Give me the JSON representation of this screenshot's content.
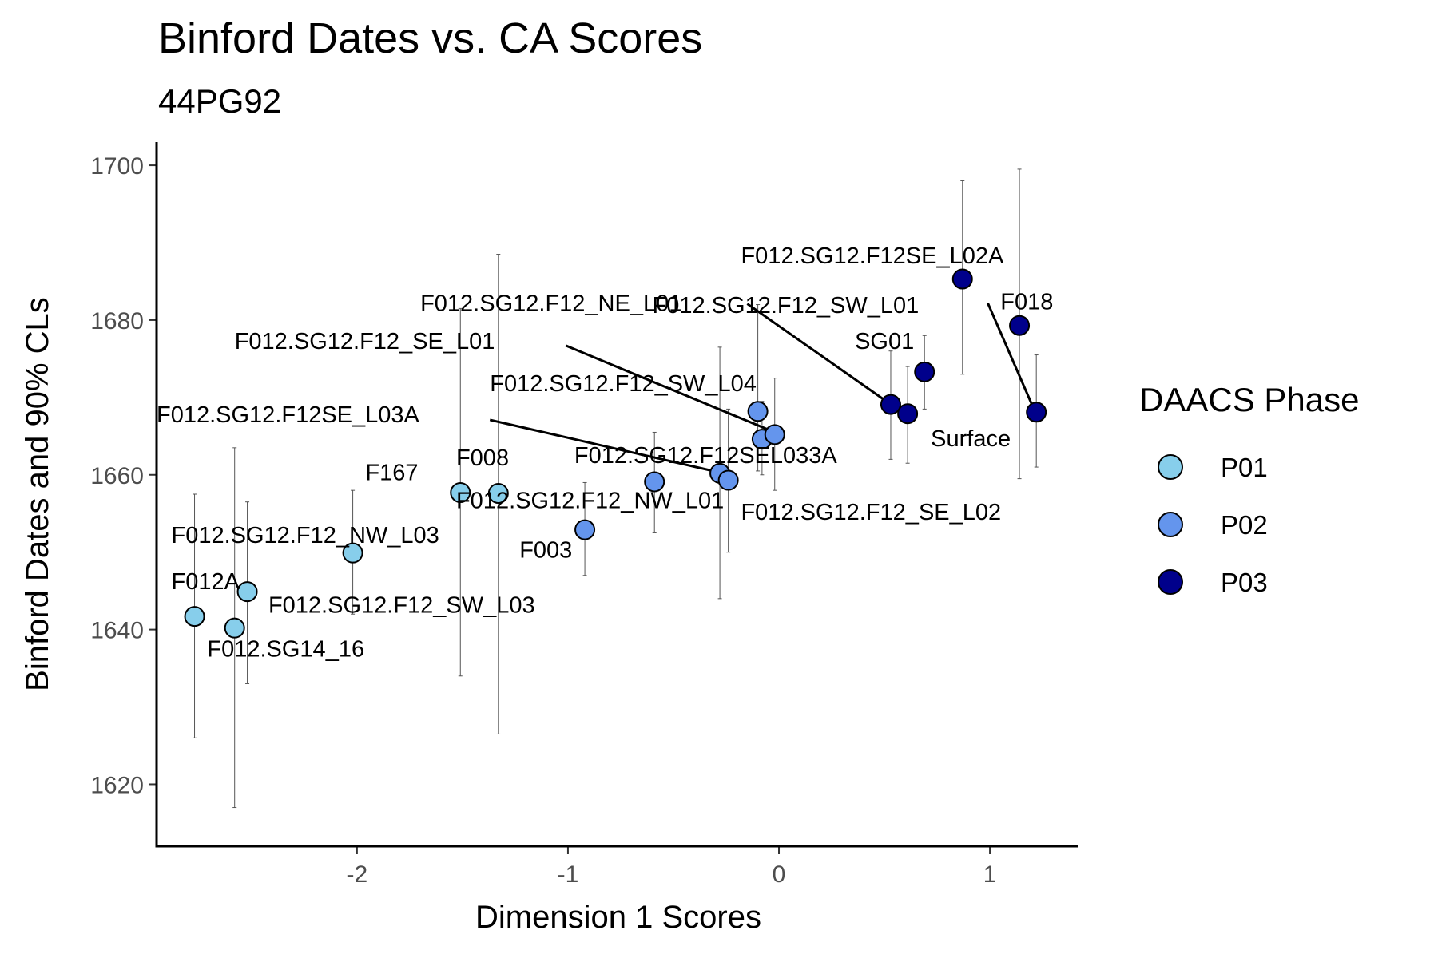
{
  "chart_data": {
    "type": "scatter",
    "title": "Binford Dates vs. CA Scores",
    "subtitle": "44PG92",
    "xlabel": "Dimension 1 Scores",
    "ylabel": "Binford Dates and 90% CLs",
    "xlim": [
      -2.95,
      1.42
    ],
    "ylim": [
      1612,
      1703
    ],
    "xticks": [
      -2,
      -1,
      0,
      1
    ],
    "yticks": [
      1620,
      1640,
      1660,
      1680,
      1700
    ],
    "grid": false,
    "legend": {
      "title": "DAACS Phase",
      "position": "right",
      "entries": [
        {
          "name": "P01",
          "color": "#87CEEB"
        },
        {
          "name": "P02",
          "color": "#6495ED"
        },
        {
          "name": "P03",
          "color": "#00008B"
        }
      ]
    },
    "points": [
      {
        "label": "F012A",
        "x": -2.77,
        "y": 1641.7,
        "ylo": 1626.0,
        "yhi": 1657.5,
        "phase": "P01",
        "lx": -2.88,
        "ly": 1645.2
      },
      {
        "label": "F012.SG14_16",
        "x": -2.58,
        "y": 1640.2,
        "ylo": 1617.0,
        "yhi": 1663.5,
        "phase": "P01",
        "lx": -2.71,
        "ly": 1636.5
      },
      {
        "label": "F012.SG12.F12_NW_L03",
        "x": -2.52,
        "y": 1644.9,
        "ylo": 1633.0,
        "yhi": 1656.5,
        "phase": "P01",
        "lx": -2.88,
        "ly": 1651.2
      },
      {
        "label": "F012.SG12.F12_SW_L03",
        "x": -2.02,
        "y": 1649.9,
        "ylo": 1642.0,
        "yhi": 1658.0,
        "phase": "P01",
        "lx": -2.42,
        "ly": 1642.2
      },
      {
        "label": "F167",
        "x": -1.51,
        "y": 1657.7,
        "ylo": 1634.0,
        "yhi": 1681.5,
        "phase": "P01",
        "lx": -1.96,
        "ly": 1659.3
      },
      {
        "label": "F008",
        "x": -1.33,
        "y": 1657.6,
        "ylo": 1626.5,
        "yhi": 1688.5,
        "phase": "P01",
        "lx": -1.53,
        "ly": 1661.2
      },
      {
        "label": "F003",
        "x": -0.92,
        "y": 1652.9,
        "ylo": 1647.0,
        "yhi": 1659.0,
        "phase": "P02",
        "lx": -1.23,
        "ly": 1649.3
      },
      {
        "label": "F012.SG12.F12_NW_L01",
        "x": -0.59,
        "y": 1659.1,
        "ylo": 1652.5,
        "yhi": 1665.5,
        "phase": "P02",
        "lx": -1.53,
        "ly": 1655.7
      },
      {
        "label": "F012.SG12.F12SE_L03A",
        "x": -0.28,
        "y": 1660.2,
        "ylo": 1644.0,
        "yhi": 1676.5,
        "phase": "P02",
        "lx": -2.95,
        "ly": 1666.8
      },
      {
        "label": "F012.SG12.F12_SE_L02",
        "x": -0.24,
        "y": 1659.3,
        "ylo": 1650.0,
        "yhi": 1668.5,
        "phase": "P02",
        "lx": -0.18,
        "ly": 1654.2
      },
      {
        "label": "F012.SG12.F12SEL033A",
        "x": -0.08,
        "y": 1664.6,
        "ylo": 1660.0,
        "yhi": 1669.5,
        "phase": "P02",
        "lx": -0.97,
        "ly": 1661.5
      },
      {
        "label": "F012.SG12.F12_SW_L04",
        "x": -0.1,
        "y": 1668.2,
        "ylo": 1660.5,
        "yhi": 1682.0,
        "phase": "P02",
        "lx": -1.37,
        "ly": 1670.8
      },
      {
        "label": "F012.SG12.F12_SE_L01",
        "x": -0.02,
        "y": 1665.2,
        "ylo": 1658.0,
        "yhi": 1672.5,
        "phase": "P02",
        "lx": -2.58,
        "ly": 1676.3
      },
      {
        "label": "F012.SG12.F12_NE_L01",
        "x": 0.53,
        "y": 1669.1,
        "ylo": 1662.0,
        "yhi": 1676.0,
        "phase": "P03",
        "lx": -1.7,
        "ly": 1681.2
      },
      {
        "label": "SG01",
        "x": 0.61,
        "y": 1667.9,
        "ylo": 1661.5,
        "yhi": 1674.0,
        "phase": "P03",
        "lx": 0.36,
        "ly": 1676.3
      },
      {
        "label": "F012.SG12.F12_SW_L01",
        "x": 0.69,
        "y": 1673.3,
        "ylo": 1668.5,
        "yhi": 1678.0,
        "phase": "P03",
        "lx": -0.6,
        "ly": 1680.9
      },
      {
        "label": "F012.SG12.F12SE_L02A",
        "x": 0.87,
        "y": 1685.3,
        "ylo": 1673.0,
        "yhi": 1698.0,
        "phase": "P03",
        "lx": -0.18,
        "ly": 1687.3
      },
      {
        "label": "F018",
        "x": 1.14,
        "y": 1679.3,
        "ylo": 1659.5,
        "yhi": 1699.5,
        "phase": "P03",
        "lx": 1.05,
        "ly": 1681.4
      },
      {
        "label": "Surface",
        "x": 1.22,
        "y": 1668.1,
        "ylo": 1661.0,
        "yhi": 1675.5,
        "phase": "P03",
        "lx": 0.72,
        "ly": 1663.7
      }
    ],
    "connectors": [
      {
        "label": "F012.SG12.F12SE_L03A",
        "x1": -1.37,
        "y1": 1667.1,
        "x2": -0.28,
        "y2": 1660.3
      },
      {
        "label": "F012.SG12.F12_SE_L01",
        "x1": -1.01,
        "y1": 1676.7,
        "x2": -0.02,
        "y2": 1665.5
      },
      {
        "label": "F012.SG12.F12_NE_L01",
        "x1": -0.15,
        "y1": 1682.1,
        "x2": 0.52,
        "y2": 1669.3
      },
      {
        "label": "Surface",
        "x1": 0.99,
        "y1": 1682.2,
        "x2": 1.21,
        "y2": 1668.4
      }
    ]
  }
}
